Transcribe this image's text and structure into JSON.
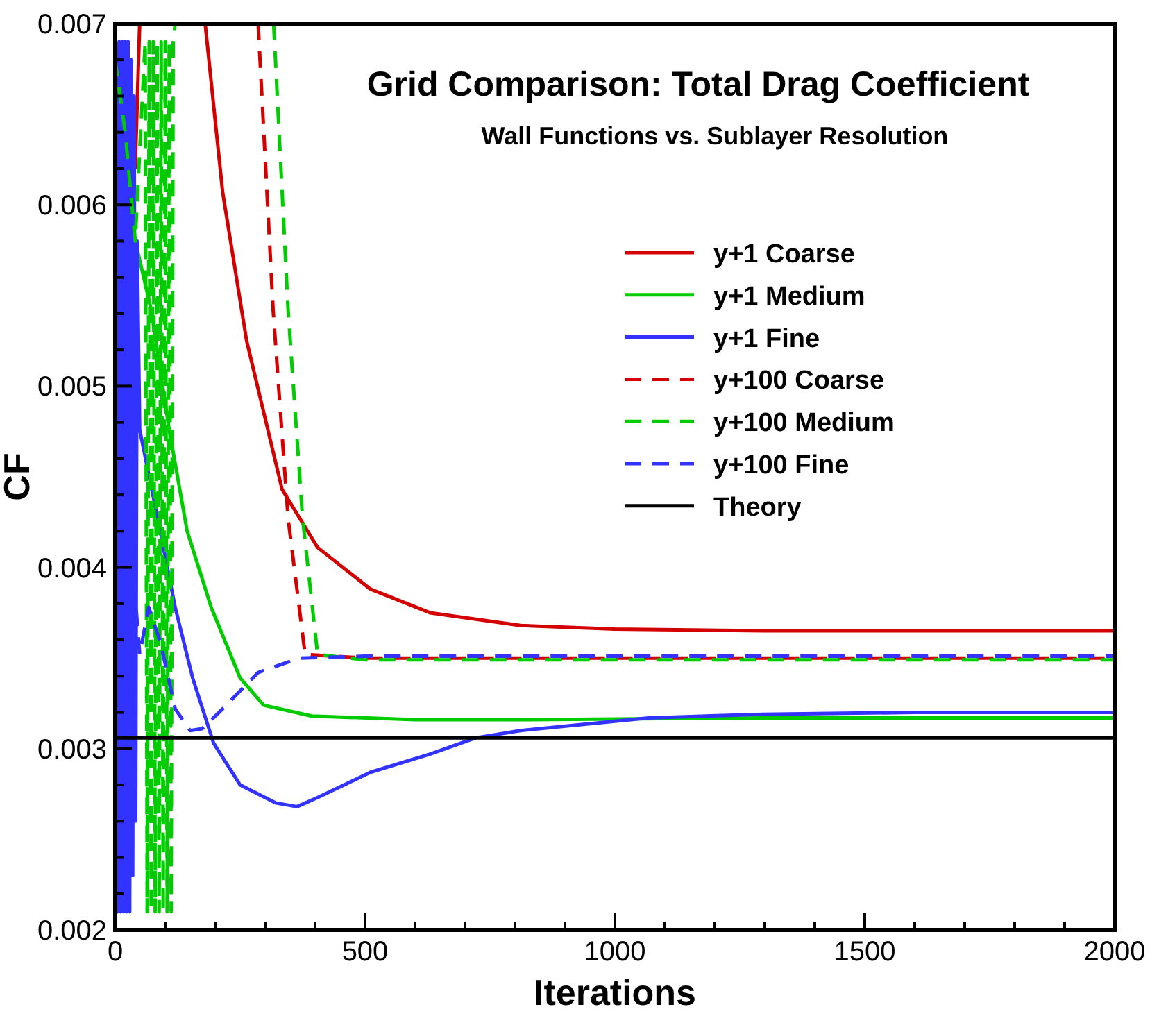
{
  "chart_data": {
    "type": "line",
    "title": "Grid Comparison: Total Drag Coefficient",
    "subtitle": "Wall Functions vs. Sublayer Resolution",
    "xlabel": "Iterations",
    "ylabel": "CF",
    "xlim": [
      0,
      2000
    ],
    "ylim": [
      0.002,
      0.007
    ],
    "xticks": [
      0,
      {
        "value": 100,
        "label": null
      },
      {
        "value": 200,
        "label": null
      },
      {
        "value": 300,
        "label": null
      },
      {
        "value": 400,
        "label": null
      },
      500,
      {
        "value": 600,
        "label": null
      },
      {
        "value": 700,
        "label": null
      },
      {
        "value": 800,
        "label": null
      },
      {
        "value": 900,
        "label": null
      },
      1000,
      {
        "value": 1100,
        "label": null
      },
      {
        "value": 1200,
        "label": null
      },
      {
        "value": 1300,
        "label": null
      },
      {
        "value": 1400,
        "label": null
      },
      1500,
      {
        "value": 1600,
        "label": null
      },
      {
        "value": 1700,
        "label": null
      },
      {
        "value": 1800,
        "label": null
      },
      {
        "value": 1900,
        "label": null
      },
      2000
    ],
    "yticks": [
      0.002,
      {
        "value": 0.0022,
        "label": null
      },
      {
        "value": 0.0024,
        "label": null
      },
      {
        "value": 0.0026,
        "label": null
      },
      {
        "value": 0.0028,
        "label": null
      },
      0.003,
      {
        "value": 0.0032,
        "label": null
      },
      {
        "value": 0.0034,
        "label": null
      },
      {
        "value": 0.0036,
        "label": null
      },
      {
        "value": 0.0038,
        "label": null
      },
      0.004,
      {
        "value": 0.0042,
        "label": null
      },
      {
        "value": 0.0044,
        "label": null
      },
      {
        "value": 0.0046,
        "label": null
      },
      {
        "value": 0.0048,
        "label": null
      },
      0.005,
      {
        "value": 0.0052,
        "label": null
      },
      {
        "value": 0.0054,
        "label": null
      },
      {
        "value": 0.0056,
        "label": null
      },
      {
        "value": 0.0058,
        "label": null
      },
      0.006,
      {
        "value": 0.0062,
        "label": null
      },
      {
        "value": 0.0064,
        "label": null
      },
      {
        "value": 0.0066,
        "label": null
      },
      {
        "value": 0.0068,
        "label": null
      },
      0.007
    ],
    "grid": false,
    "legend": "top right",
    "marker": "none",
    "series": [
      {
        "name": "y+1 Coarse",
        "color": "#d40000",
        "line_style": "solid",
        "x": [
          40,
          49,
          100,
          180,
          215,
          263,
          334,
          405,
          511,
          630,
          811,
          1000,
          1297,
          1600,
          2000
        ],
        "values": [
          0.0062,
          0.007,
          null,
          0.007,
          0.00607,
          0.00525,
          0.00443,
          0.00411,
          0.00388,
          0.00375,
          0.00368,
          0.00366,
          0.00365,
          0.00365,
          0.00365
        ]
      },
      {
        "name": "y+1 Medium",
        "color": "#00cc00",
        "line_style": "solid",
        "x": [
          0,
          20,
          37,
          72,
          108,
          144,
          192,
          250,
          297,
          393,
          600,
          811,
          1297,
          2000
        ],
        "values": [
          0.0068,
          0.0063,
          0.00584,
          0.00542,
          0.00476,
          0.0042,
          0.00378,
          0.00339,
          0.00324,
          0.00318,
          0.00316,
          0.00316,
          0.00317,
          0.00317
        ]
      },
      {
        "name": "y+1 Fine",
        "color": "#3333ff",
        "line_style": "solid",
        "x": [
          2,
          5,
          8,
          11,
          14,
          17,
          20,
          23,
          26,
          29,
          32,
          35,
          38,
          41,
          44,
          49,
          85,
          120,
          155,
          197,
          250,
          322,
          364,
          405,
          511,
          630,
          722,
          811,
          1067,
          1297,
          1600,
          2000
        ],
        "values": [
          0.0069,
          0.0021,
          0.0069,
          0.0021,
          0.0069,
          0.0021,
          0.0069,
          0.0021,
          0.0069,
          0.0021,
          0.0068,
          0.0023,
          0.0066,
          0.0026,
          0.0058,
          0.00476,
          0.00427,
          0.00378,
          0.00339,
          0.00303,
          0.0028,
          0.0027,
          0.00268,
          0.00273,
          0.00287,
          0.00297,
          0.00306,
          0.0031,
          0.00317,
          0.00319,
          0.0032,
          0.0032
        ]
      },
      {
        "name": "y+100 Coarse",
        "color": "#d40000",
        "line_style": "dashed",
        "x": [
          286,
          316,
          346,
          380,
          500,
          1000,
          1500,
          2000
        ],
        "values": [
          0.007,
          0.00542,
          0.00427,
          0.00352,
          0.0035,
          0.0035,
          0.0035,
          0.0035
        ]
      },
      {
        "name": "y+100 Medium",
        "color": "#00cc00",
        "line_style": "dashed",
        "x": [
          0,
          20,
          40,
          60,
          64,
          68,
          72,
          76,
          80,
          84,
          88,
          92,
          96,
          100,
          104,
          108,
          112,
          116,
          120,
          200,
          317,
          346,
          375,
          405,
          500,
          1000,
          1500,
          2000
        ],
        "values": [
          0.0068,
          0.0064,
          0.0058,
          0.0069,
          0.0021,
          0.0069,
          0.0021,
          0.0069,
          0.0021,
          0.0069,
          0.0021,
          0.0069,
          0.0021,
          0.0069,
          0.0021,
          0.0069,
          0.0021,
          0.0069,
          0.007,
          null,
          0.007,
          0.00542,
          0.00427,
          0.00352,
          0.00349,
          0.00349,
          0.00349,
          0.00349
        ]
      },
      {
        "name": "y+100 Fine",
        "color": "#3333ff",
        "line_style": "dashed",
        "x": [
          0,
          15,
          30,
          49,
          67,
          91,
          120,
          150,
          174,
          215,
          286,
          369,
          500,
          1000,
          1500,
          2000
        ],
        "values": [
          0.0045,
          0.0025,
          0.0042,
          0.00352,
          0.00378,
          0.00358,
          0.00322,
          0.0031,
          0.00311,
          0.00322,
          0.00342,
          0.0035,
          0.00351,
          0.00351,
          0.00351,
          0.00351
        ]
      },
      {
        "name": "Theory",
        "color": "#000000",
        "line_style": "solid",
        "x": [
          0,
          2000
        ],
        "values": [
          0.00306,
          0.00306
        ]
      }
    ]
  }
}
